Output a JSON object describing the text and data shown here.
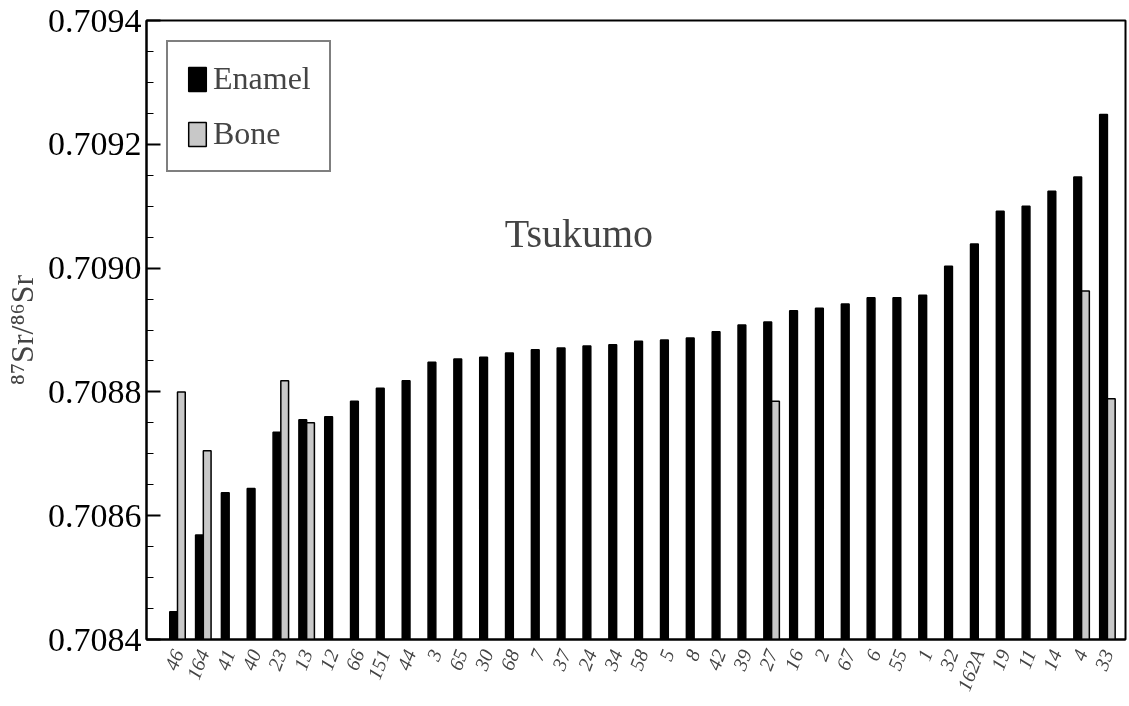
{
  "chart_data": {
    "type": "bar",
    "ylabel": "⁸⁷Sr/⁸⁶Sr",
    "annotations": [
      "Tsukumo"
    ],
    "categories": [
      "46",
      "164",
      "41",
      "40",
      "23",
      "13",
      "12",
      "66",
      "151",
      "44",
      "3",
      "65",
      "30",
      "68",
      "7",
      "37",
      "24",
      "34",
      "58",
      "5",
      "8",
      "42",
      "39",
      "27",
      "16",
      "2",
      "67",
      "6",
      "55",
      "1",
      "32",
      "162A",
      "19",
      "11",
      "14",
      "4",
      "33"
    ],
    "series": [
      {
        "name": "Enamel",
        "color": "#000000",
        "values": [
          0.708445,
          0.708569,
          0.708637,
          0.708644,
          0.708735,
          0.708755,
          0.70876,
          0.708785,
          0.708806,
          0.708818,
          0.708848,
          0.708853,
          0.708856,
          0.708863,
          0.708868,
          0.708871,
          0.708874,
          0.708876,
          0.708882,
          0.708884,
          0.708887,
          0.708897,
          0.708908,
          0.708913,
          0.708931,
          0.708935,
          0.708942,
          0.708952,
          0.708952,
          0.708956,
          0.709003,
          0.709039,
          0.709092,
          0.7091,
          0.709124,
          0.709147,
          0.709248
        ]
      },
      {
        "name": "Bone",
        "color": "#c8c8c8",
        "values": [
          0.7088,
          0.708705,
          null,
          null,
          0.708818,
          0.70875,
          null,
          null,
          null,
          null,
          null,
          null,
          null,
          null,
          null,
          null,
          null,
          null,
          null,
          null,
          null,
          null,
          null,
          0.708785,
          null,
          null,
          null,
          null,
          null,
          null,
          null,
          null,
          null,
          null,
          null,
          0.708963,
          0.708789
        ]
      }
    ],
    "ylim": [
      0.7084,
      0.7094
    ],
    "yticks": [
      0.7084,
      {
        "value": 0.70845,
        "label": null
      },
      {
        "value": 0.7085,
        "label": null
      },
      {
        "value": 0.70855,
        "label": null
      },
      0.7086,
      {
        "value": 0.70865,
        "label": null
      },
      {
        "value": 0.7087,
        "label": null
      },
      {
        "value": 0.70875,
        "label": null
      },
      0.7088,
      {
        "value": 0.70885,
        "label": null
      },
      {
        "value": 0.7089,
        "label": null
      },
      {
        "value": 0.70895,
        "label": null
      },
      {
        "value": 0.709,
        "label": "0.7090"
      },
      {
        "value": 0.70905,
        "label": null
      },
      {
        "value": 0.7091,
        "label": null
      },
      {
        "value": 0.70915,
        "label": null
      },
      0.7092,
      {
        "value": 0.70925,
        "label": null
      },
      {
        "value": 0.7093,
        "label": null
      },
      {
        "value": 0.70935,
        "label": null
      },
      0.7094
    ],
    "grid": false,
    "legend": "top left"
  }
}
